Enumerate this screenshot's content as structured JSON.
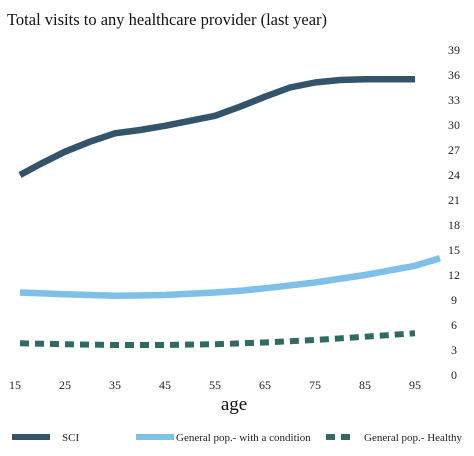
{
  "chart_data": {
    "type": "line",
    "title": "Total visits to any healthcare provider (last year)",
    "xlabel": "age",
    "ylabel": "",
    "xlim": [
      15,
      100
    ],
    "ylim": [
      0,
      39
    ],
    "x_ticks": [
      "15",
      "25",
      "35",
      "45",
      "55",
      "65",
      "75",
      "85",
      "95"
    ],
    "y_ticks": [
      "0",
      "3",
      "6",
      "9",
      "12",
      "15",
      "18",
      "21",
      "24",
      "27",
      "30",
      "33",
      "36",
      "39"
    ],
    "grid": false,
    "legend_position": "bottom",
    "series": [
      {
        "name": "SCI",
        "color": "#33546b",
        "style": "solid",
        "x": [
          16,
          20,
          25,
          30,
          35,
          40,
          45,
          50,
          55,
          60,
          65,
          70,
          75,
          80,
          85,
          90,
          95
        ],
        "y": [
          24.0,
          25.3,
          26.8,
          28.0,
          29.0,
          29.4,
          29.9,
          30.5,
          31.1,
          32.2,
          33.4,
          34.5,
          35.1,
          35.4,
          35.5,
          35.5,
          35.5
        ]
      },
      {
        "name": "General pop.- with a condition",
        "color": "#7ec0e8",
        "style": "solid",
        "x": [
          16,
          25,
          35,
          45,
          55,
          60,
          65,
          75,
          85,
          95,
          100
        ],
        "y": [
          9.9,
          9.7,
          9.5,
          9.6,
          9.9,
          10.1,
          10.4,
          11.1,
          12.0,
          13.1,
          14.0
        ]
      },
      {
        "name": "General pop.- Healthy",
        "color": "#2f6a63",
        "style": "dashed",
        "x": [
          16,
          25,
          35,
          45,
          55,
          65,
          75,
          85,
          95
        ],
        "y": [
          3.8,
          3.7,
          3.6,
          3.6,
          3.7,
          3.9,
          4.2,
          4.6,
          5.0
        ]
      }
    ]
  }
}
